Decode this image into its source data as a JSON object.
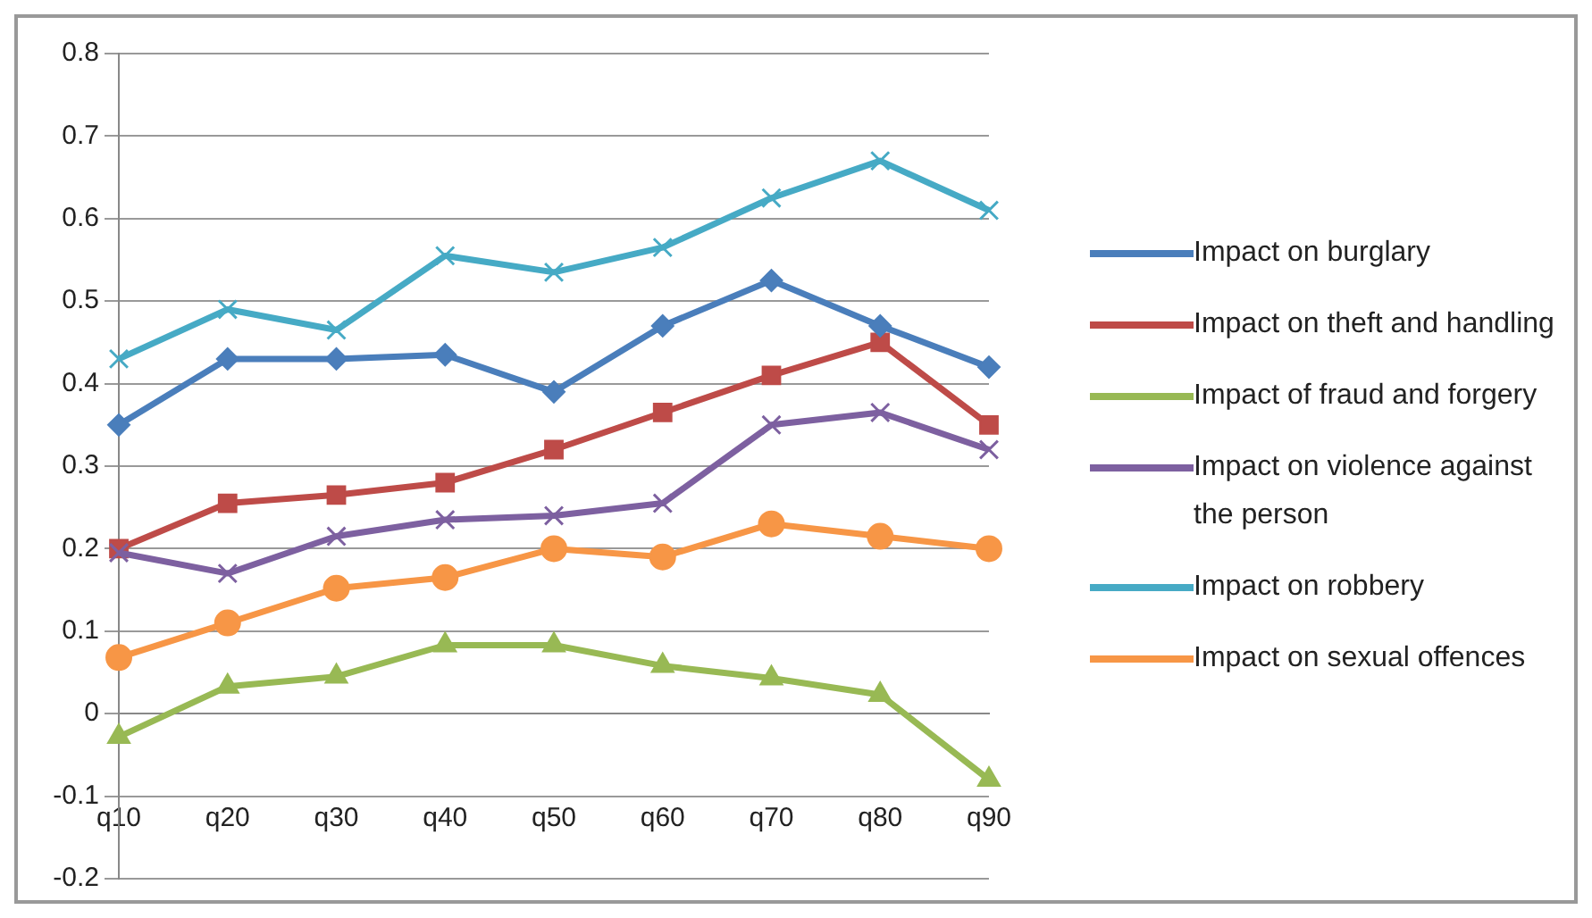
{
  "chart_data": {
    "type": "line",
    "categories": [
      "q10",
      "q20",
      "q30",
      "q40",
      "q50",
      "q60",
      "q70",
      "q80",
      "q90"
    ],
    "series": [
      {
        "name": "Impact on burglary",
        "color": "#4a7ebb",
        "marker": "diamond",
        "values": [
          0.35,
          0.43,
          0.43,
          0.435,
          0.39,
          0.47,
          0.525,
          0.47,
          0.42
        ]
      },
      {
        "name": "Impact on theft and handling",
        "color": "#be4b48",
        "marker": "square",
        "values": [
          0.2,
          0.255,
          0.265,
          0.28,
          0.32,
          0.365,
          0.41,
          0.45,
          0.35
        ]
      },
      {
        "name": "Impact of fraud and forgery",
        "color": "#98b954",
        "marker": "triangle",
        "values": [
          -0.028,
          0.033,
          0.045,
          0.083,
          0.083,
          0.058,
          0.043,
          0.023,
          -0.08
        ]
      },
      {
        "name": "Impact on violence against the person",
        "color": "#7d60a0",
        "marker": "cross",
        "values": [
          0.195,
          0.17,
          0.215,
          0.235,
          0.24,
          0.255,
          0.35,
          0.365,
          0.32
        ]
      },
      {
        "name": "Impact on robbery",
        "color": "#46aac5",
        "marker": "cross",
        "values": [
          0.43,
          0.49,
          0.465,
          0.555,
          0.535,
          0.565,
          0.625,
          0.67,
          0.61
        ]
      },
      {
        "name": "Impact on sexual offences",
        "color": "#f79646",
        "marker": "circle",
        "values": [
          0.068,
          0.11,
          0.152,
          0.165,
          0.2,
          0.19,
          0.23,
          0.215,
          0.2
        ]
      }
    ],
    "ylim": [
      -0.2,
      0.8
    ],
    "yticks": [
      -0.2,
      -0.1,
      0,
      0.1,
      0.2,
      0.3,
      0.4,
      0.5,
      0.6,
      0.7,
      0.8
    ],
    "grid": "y",
    "legend": "right"
  }
}
